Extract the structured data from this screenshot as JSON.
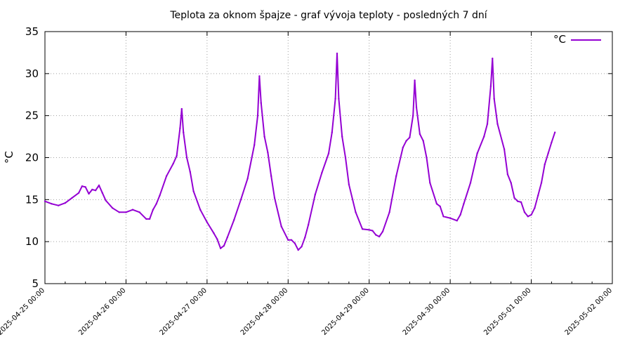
{
  "chart_data": {
    "type": "line",
    "title": "Teplota za oknom špajze - graf vývoja teploty - posledných 7 dní",
    "xlabel": "",
    "ylabel": "°C",
    "ylim": [
      5,
      35
    ],
    "yticks": [
      5,
      10,
      15,
      20,
      25,
      30,
      35
    ],
    "xlim": [
      "2025-04-25 00:00",
      "2025-05-02 00:00"
    ],
    "xticks": [
      "2025-04-25 00:00",
      "2025-04-26 00:00",
      "2025-04-27 00:00",
      "2025-04-28 00:00",
      "2025-04-29 00:00",
      "2025-04-30 00:00",
      "2025-05-01 00:00",
      "2025-05-02 00:00"
    ],
    "grid": true,
    "legend": {
      "position": "top-right",
      "entries": [
        "°C"
      ]
    },
    "series": [
      {
        "name": "°C",
        "color": "#9400d3",
        "points": [
          [
            "2025-04-25 00:00",
            14.8
          ],
          [
            "2025-04-25 02:00",
            14.5
          ],
          [
            "2025-04-25 04:00",
            14.3
          ],
          [
            "2025-04-25 06:00",
            14.6
          ],
          [
            "2025-04-25 08:00",
            15.2
          ],
          [
            "2025-04-25 10:00",
            15.8
          ],
          [
            "2025-04-25 11:00",
            16.6
          ],
          [
            "2025-04-25 12:00",
            16.5
          ],
          [
            "2025-04-25 13:00",
            15.7
          ],
          [
            "2025-04-25 14:00",
            16.2
          ],
          [
            "2025-04-25 15:00",
            16.1
          ],
          [
            "2025-04-25 16:00",
            16.7
          ],
          [
            "2025-04-25 17:00",
            15.8
          ],
          [
            "2025-04-25 18:00",
            14.9
          ],
          [
            "2025-04-25 20:00",
            14.0
          ],
          [
            "2025-04-25 22:00",
            13.5
          ],
          [
            "2025-04-26 00:00",
            13.5
          ],
          [
            "2025-04-26 02:00",
            13.8
          ],
          [
            "2025-04-26 04:00",
            13.5
          ],
          [
            "2025-04-26 06:00",
            12.7
          ],
          [
            "2025-04-26 07:00",
            12.7
          ],
          [
            "2025-04-26 08:00",
            13.8
          ],
          [
            "2025-04-26 09:00",
            14.5
          ],
          [
            "2025-04-26 10:00",
            15.5
          ],
          [
            "2025-04-26 12:00",
            17.8
          ],
          [
            "2025-04-26 14:00",
            19.3
          ],
          [
            "2025-04-26 15:00",
            20.2
          ],
          [
            "2025-04-26 16:00",
            23.5
          ],
          [
            "2025-04-26 16:30",
            25.8
          ],
          [
            "2025-04-26 17:00",
            23.0
          ],
          [
            "2025-04-26 18:00",
            20.0
          ],
          [
            "2025-04-26 19:00",
            18.3
          ],
          [
            "2025-04-26 20:00",
            16.0
          ],
          [
            "2025-04-26 22:00",
            13.8
          ],
          [
            "2025-04-27 00:00",
            12.3
          ],
          [
            "2025-04-27 02:00",
            11.0
          ],
          [
            "2025-04-27 03:00",
            10.3
          ],
          [
            "2025-04-27 04:00",
            9.2
          ],
          [
            "2025-04-27 05:00",
            9.5
          ],
          [
            "2025-04-27 06:00",
            10.5
          ],
          [
            "2025-04-27 08:00",
            12.6
          ],
          [
            "2025-04-27 10:00",
            15.0
          ],
          [
            "2025-04-27 12:00",
            17.5
          ],
          [
            "2025-04-27 14:00",
            21.5
          ],
          [
            "2025-04-27 15:00",
            25.0
          ],
          [
            "2025-04-27 15:30",
            29.7
          ],
          [
            "2025-04-27 16:00",
            26.5
          ],
          [
            "2025-04-27 17:00",
            22.5
          ],
          [
            "2025-04-27 18:00",
            20.6
          ],
          [
            "2025-04-27 19:00",
            17.8
          ],
          [
            "2025-04-27 20:00",
            15.2
          ],
          [
            "2025-04-27 22:00",
            11.8
          ],
          [
            "2025-04-28 00:00",
            10.2
          ],
          [
            "2025-04-28 01:00",
            10.2
          ],
          [
            "2025-04-28 02:00",
            9.8
          ],
          [
            "2025-04-28 03:00",
            9.0
          ],
          [
            "2025-04-28 04:00",
            9.4
          ],
          [
            "2025-04-28 05:00",
            10.5
          ],
          [
            "2025-04-28 06:00",
            12.0
          ],
          [
            "2025-04-28 08:00",
            15.6
          ],
          [
            "2025-04-28 10:00",
            18.2
          ],
          [
            "2025-04-28 12:00",
            20.5
          ],
          [
            "2025-04-28 13:00",
            23.0
          ],
          [
            "2025-04-28 14:00",
            27.0
          ],
          [
            "2025-04-28 14:30",
            32.4
          ],
          [
            "2025-04-28 15:00",
            27.0
          ],
          [
            "2025-04-28 16:00",
            22.5
          ],
          [
            "2025-04-28 17:00",
            20.0
          ],
          [
            "2025-04-28 18:00",
            16.8
          ],
          [
            "2025-04-28 20:00",
            13.5
          ],
          [
            "2025-04-28 22:00",
            11.5
          ],
          [
            "2025-04-29 00:00",
            11.4
          ],
          [
            "2025-04-29 01:00",
            11.3
          ],
          [
            "2025-04-29 02:00",
            10.8
          ],
          [
            "2025-04-29 03:00",
            10.6
          ],
          [
            "2025-04-29 04:00",
            11.2
          ],
          [
            "2025-04-29 06:00",
            13.5
          ],
          [
            "2025-04-29 08:00",
            17.8
          ],
          [
            "2025-04-29 10:00",
            21.2
          ],
          [
            "2025-04-29 11:00",
            22.0
          ],
          [
            "2025-04-29 12:00",
            22.4
          ],
          [
            "2025-04-29 13:00",
            25.0
          ],
          [
            "2025-04-29 13:30",
            29.2
          ],
          [
            "2025-04-29 14:00",
            26.0
          ],
          [
            "2025-04-29 15:00",
            22.8
          ],
          [
            "2025-04-29 16:00",
            22.0
          ],
          [
            "2025-04-29 17:00",
            20.0
          ],
          [
            "2025-04-29 18:00",
            17.0
          ],
          [
            "2025-04-29 20:00",
            14.5
          ],
          [
            "2025-04-29 21:00",
            14.2
          ],
          [
            "2025-04-29 22:00",
            13.0
          ],
          [
            "2025-04-30 00:00",
            12.8
          ],
          [
            "2025-04-30 02:00",
            12.5
          ],
          [
            "2025-04-30 03:00",
            13.2
          ],
          [
            "2025-04-30 04:00",
            14.5
          ],
          [
            "2025-04-30 06:00",
            17.0
          ],
          [
            "2025-04-30 08:00",
            20.5
          ],
          [
            "2025-04-30 10:00",
            22.5
          ],
          [
            "2025-04-30 11:00",
            24.0
          ],
          [
            "2025-04-30 12:00",
            28.5
          ],
          [
            "2025-04-30 12:30",
            31.8
          ],
          [
            "2025-04-30 13:00",
            27.0
          ],
          [
            "2025-04-30 14:00",
            24.0
          ],
          [
            "2025-04-30 16:00",
            21.0
          ],
          [
            "2025-04-30 17:00",
            18.0
          ],
          [
            "2025-04-30 18:00",
            17.0
          ],
          [
            "2025-04-30 19:00",
            15.2
          ],
          [
            "2025-04-30 20:00",
            14.8
          ],
          [
            "2025-04-30 21:00",
            14.7
          ],
          [
            "2025-04-30 22:00",
            13.5
          ],
          [
            "2025-04-30 23:00",
            13.0
          ],
          [
            "2025-05-01 00:00",
            13.2
          ],
          [
            "2025-05-01 01:00",
            14.0
          ],
          [
            "2025-05-01 02:00",
            15.5
          ],
          [
            "2025-05-01 03:00",
            17.0
          ],
          [
            "2025-05-01 04:00",
            19.2
          ],
          [
            "2025-05-01 05:00",
            20.5
          ],
          [
            "2025-05-01 06:00",
            21.8
          ],
          [
            "2025-05-01 07:00",
            23.0
          ]
        ]
      }
    ]
  }
}
